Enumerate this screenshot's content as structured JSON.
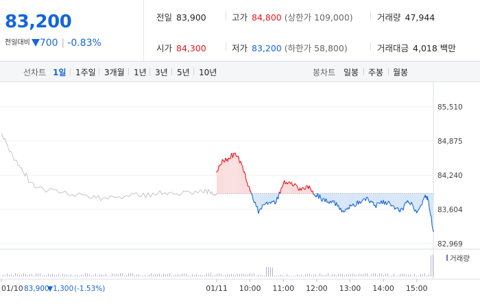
{
  "quote": {
    "price": "83,200",
    "change_label": "전일대비",
    "change_amount": "700",
    "change_rate": "-0.83%",
    "prev_close_label": "전일",
    "prev_close": "83,900",
    "high_label": "고가",
    "high": "84,800",
    "upper_limit": "(상한가 109,000)",
    "volume_label": "거래량",
    "volume": "47,944",
    "open_label": "시가",
    "open": "84,300",
    "low_label": "저가",
    "low": "83,200",
    "lower_limit": "(하한가 58,800)",
    "amount_label": "거래대금",
    "amount": "4,018 백만"
  },
  "tabs": {
    "line_label": "선차트",
    "line": [
      "1일",
      "1주일",
      "3개월",
      "1년",
      "3년",
      "5년",
      "10년"
    ],
    "candle_label": "봉차트",
    "candle": [
      "일봉",
      "주봉",
      "월봉"
    ]
  },
  "colors": {
    "up": "#e5181d",
    "down": "#1565d8",
    "prev_day": "#c4c4c4",
    "up_fill": "#fadcdc",
    "down_fill": "#d6e6f8",
    "volume": "#7b6bb8"
  },
  "chart_data": {
    "type": "line",
    "y_ticks": [
      "85,510",
      "84,875",
      "84,240",
      "83,604",
      "82,969"
    ],
    "ylim": [
      82969,
      85510
    ],
    "baseline": 83900,
    "x_ticks": [
      "01/10",
      "01/11",
      "10:00",
      "11:00",
      "12:00",
      "13:00",
      "14:00",
      "15:00"
    ],
    "volume_label": "거래량",
    "prev_day_summary": {
      "date": "01/10",
      "close": "83,900",
      "change": "▼1,300",
      "rate": "(-1.53%)"
    },
    "series": [
      {
        "x": [
          "01/10 09:00",
          "01/10 09:30",
          "01/10 10:00",
          "01/10 11:00",
          "01/10 12:00",
          "01/10 13:00",
          "01/10 14:00",
          "01/10 15:00",
          "01/10 15:30"
        ],
        "y": [
          85020,
          84420,
          84020,
          83920,
          83800,
          83870,
          83900,
          83960,
          83900
        ]
      },
      {
        "x": [
          "09:00",
          "09:10",
          "09:20",
          "09:30",
          "09:40",
          "09:50",
          "10:00",
          "10:15",
          "10:30",
          "10:45",
          "11:00",
          "11:15",
          "11:30",
          "11:45",
          "12:00",
          "12:15",
          "12:30",
          "12:45",
          "13:00",
          "13:15",
          "13:30",
          "13:45",
          "14:00",
          "14:15",
          "14:30",
          "14:45",
          "15:00",
          "15:15",
          "15:20",
          "15:30"
        ],
        "y": [
          84300,
          84520,
          84500,
          84640,
          84560,
          84300,
          83950,
          83560,
          83740,
          83720,
          84080,
          84110,
          84000,
          84020,
          83860,
          83750,
          83740,
          83560,
          83680,
          83720,
          83830,
          83680,
          83770,
          83670,
          83590,
          83750,
          83560,
          83840,
          83800,
          83200
        ]
      }
    ]
  }
}
